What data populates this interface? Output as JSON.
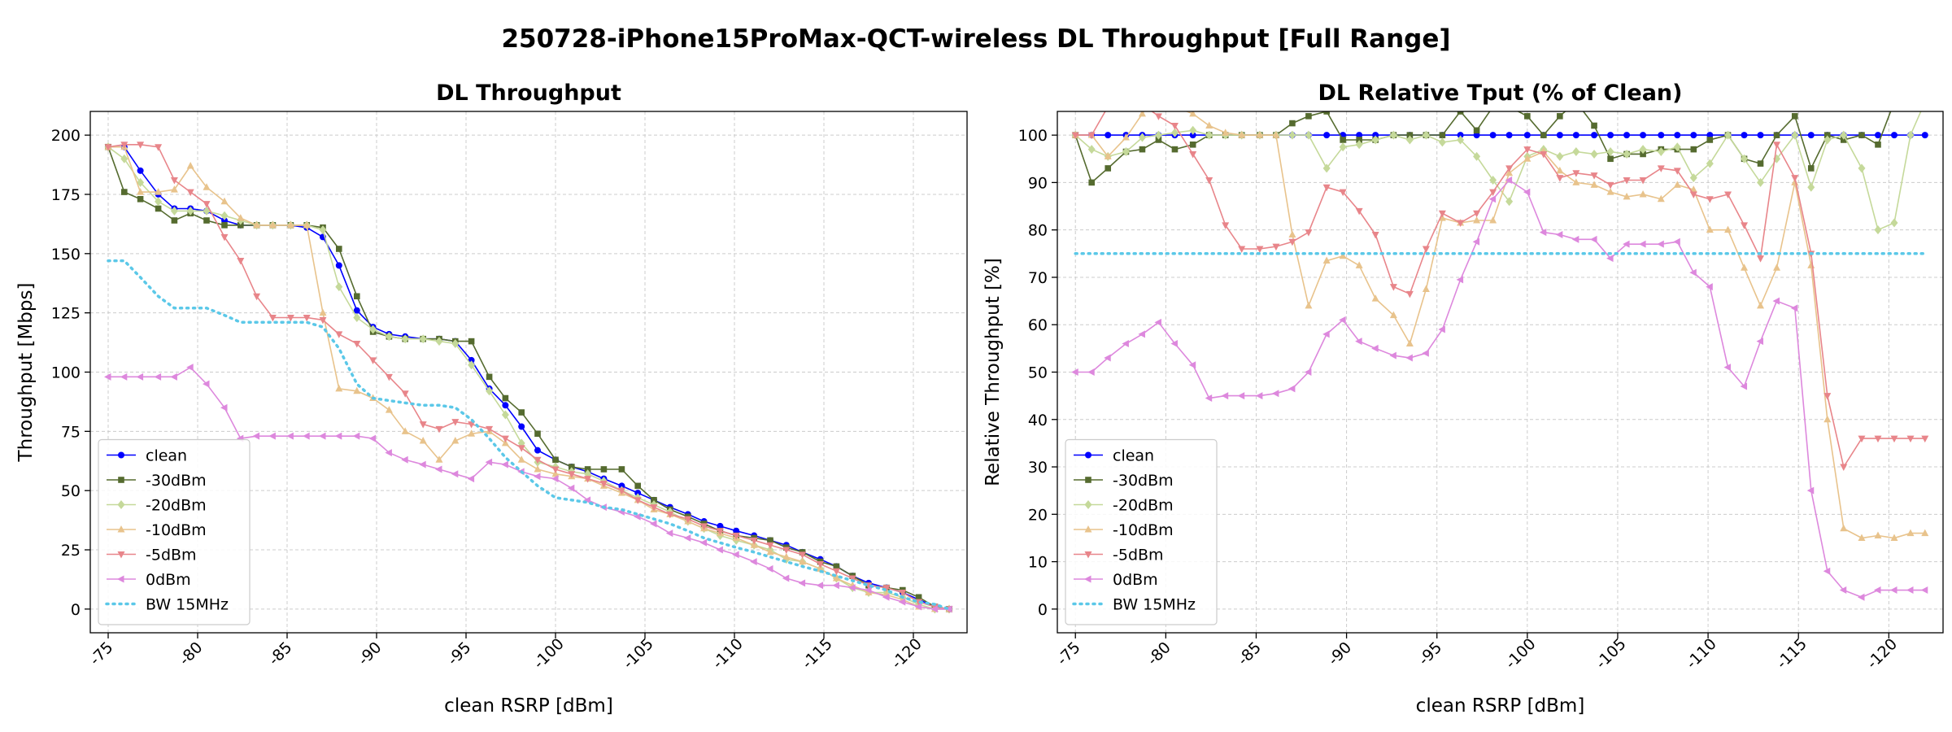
{
  "figure_title": "250728-iPhone15ProMax-QCT-wireless DL Throughput [Full Range]",
  "colors": {
    "clean": "#0000ff",
    "-30dBm": "#556b2f",
    "-20dBm": "#c5d99a",
    "-10dBm": "#e8c38c",
    "-5dBm": "#e8858a",
    "0dBm": "#dd88dd",
    "BW 15MHz": "#5bc8e8"
  },
  "chart_data": [
    {
      "type": "line",
      "title": "DL Throughput",
      "xlabel": "clean RSRP [dBm]",
      "ylabel": "Throughput [Mbps]",
      "xlim": [
        -74,
        -123
      ],
      "ylim": [
        -10,
        210
      ],
      "xticks": [
        -75,
        -80,
        -85,
        -90,
        -95,
        -100,
        -105,
        -110,
        -115,
        -120
      ],
      "xtick_labels": [
        "-75",
        "-80",
        "-85",
        "-90",
        "-95",
        "-100",
        "-105",
        "-110",
        "-115",
        "-120"
      ],
      "yticks": [
        0,
        25,
        50,
        75,
        100,
        125,
        150,
        175,
        200
      ],
      "ytick_labels": [
        "0",
        "25",
        "50",
        "75",
        "100",
        "125",
        "150",
        "175",
        "200"
      ],
      "grid": true,
      "legend_position": "lower-left",
      "x": [
        -75,
        -75.9,
        -76.8,
        -77.8,
        -78.7,
        -79.6,
        -80.5,
        -81.5,
        -82.4,
        -83.3,
        -84.2,
        -85.2,
        -86.1,
        -87,
        -87.9,
        -88.9,
        -89.8,
        -90.7,
        -91.6,
        -92.6,
        -93.5,
        -94.4,
        -95.3,
        -96.3,
        -97.2,
        -98.1,
        -99,
        -100,
        -100.9,
        -101.8,
        -102.7,
        -103.7,
        -104.6,
        -105.5,
        -106.4,
        -107.4,
        -108.3,
        -109.2,
        -110.1,
        -111.1,
        -112,
        -112.9,
        -113.8,
        -114.8,
        -115.7,
        -116.6,
        -117.5,
        -118.5,
        -119.4,
        -120.3,
        -121.2,
        -122
      ],
      "series": [
        {
          "name": "clean",
          "marker": "circle",
          "values": [
            195,
            195,
            185,
            175,
            169,
            169,
            168,
            164,
            162,
            162,
            162,
            162,
            161,
            157,
            145,
            126,
            119,
            116,
            115,
            114,
            114,
            113,
            105,
            93,
            86,
            77,
            67,
            63,
            60,
            58,
            55,
            52,
            49,
            46,
            43,
            40,
            37,
            35,
            33,
            31,
            29,
            27,
            24,
            21,
            18,
            14,
            11,
            9,
            7,
            4,
            1,
            0
          ]
        },
        {
          "name": "-30dBm",
          "marker": "square",
          "values": [
            195,
            176,
            173,
            169,
            164,
            167,
            164,
            162,
            162,
            162,
            162,
            162,
            162,
            161,
            152,
            132,
            117,
            115,
            114,
            114,
            114,
            113,
            113,
            98,
            89,
            83,
            74,
            63,
            60,
            59,
            59,
            59,
            52,
            46,
            42,
            39,
            36,
            33,
            31,
            30,
            29,
            26,
            24,
            20,
            18,
            14,
            10,
            9,
            8,
            5,
            1,
            0
          ]
        },
        {
          "name": "-20dBm",
          "marker": "diamond",
          "values": [
            195,
            190,
            180,
            172,
            168,
            168,
            168,
            166,
            164,
            162,
            162,
            162,
            162,
            160,
            136,
            123,
            118,
            115,
            114,
            114,
            113,
            112,
            103,
            92,
            82,
            70,
            62,
            60,
            58,
            57,
            54,
            50,
            47,
            44,
            41,
            37,
            34,
            31,
            29,
            27,
            25,
            21,
            20,
            17,
            13,
            9,
            7,
            7,
            5,
            2,
            0,
            0
          ]
        },
        {
          "name": "-10dBm",
          "marker": "triangle-up",
          "values": [
            195,
            195,
            176,
            176,
            177,
            187,
            178,
            172,
            165,
            162,
            162,
            162,
            162,
            125,
            93,
            92,
            89,
            84,
            75,
            71,
            63,
            71,
            74,
            75,
            70,
            63,
            59,
            57,
            56,
            55,
            52,
            49,
            46,
            42,
            40,
            37,
            34,
            32,
            30,
            27,
            24,
            22,
            20,
            17,
            13,
            10,
            7,
            6,
            4,
            1,
            0,
            0
          ]
        },
        {
          "name": "-5dBm",
          "marker": "triangle-down",
          "values": [
            195,
            196,
            196,
            195,
            181,
            176,
            171,
            157,
            147,
            132,
            123,
            123,
            123,
            122,
            116,
            112,
            105,
            98,
            91,
            78,
            76,
            79,
            78,
            76,
            72,
            68,
            63,
            59,
            57,
            55,
            53,
            50,
            46,
            43,
            40,
            38,
            35,
            33,
            31,
            29,
            27,
            25,
            23,
            19,
            16,
            13,
            10,
            9,
            7,
            3,
            1,
            0
          ]
        },
        {
          "name": "0dBm",
          "marker": "triangle-left",
          "values": [
            98,
            98,
            98,
            98,
            98,
            102,
            95,
            85,
            72,
            73,
            73,
            73,
            73,
            73,
            73,
            73,
            72,
            66,
            63,
            61,
            59,
            57,
            55,
            62,
            61,
            58,
            56,
            55,
            51,
            46,
            43,
            41,
            39,
            36,
            32,
            30,
            28,
            25,
            23,
            20,
            17,
            13,
            11,
            10,
            10,
            9,
            8,
            5,
            3,
            1,
            0,
            0
          ]
        },
        {
          "name": "BW 15MHz",
          "marker": "none",
          "dashed": true,
          "values": [
            147,
            147,
            140,
            132,
            127,
            127,
            127,
            124,
            121,
            121,
            121,
            121,
            121,
            119,
            110,
            95,
            89,
            88,
            87,
            86,
            86,
            85,
            80,
            72,
            64,
            58,
            52,
            47,
            46,
            45,
            43,
            42,
            40,
            38,
            36,
            33,
            30,
            28,
            26,
            24,
            22,
            20,
            18,
            16,
            14,
            12,
            10,
            8,
            5,
            3,
            2,
            0
          ]
        }
      ]
    },
    {
      "type": "line",
      "title": "DL Relative Tput (% of Clean)",
      "xlabel": "clean RSRP [dBm]",
      "ylabel": "Relative Throughput [%]",
      "xlim": [
        -74,
        -123
      ],
      "ylim": [
        -5,
        105
      ],
      "xticks": [
        -75,
        -80,
        -85,
        -90,
        -95,
        -100,
        -105,
        -110,
        -115,
        -120
      ],
      "xtick_labels": [
        "-75",
        "-80",
        "-85",
        "-90",
        "-95",
        "-100",
        "-105",
        "-110",
        "-115",
        "-120"
      ],
      "yticks": [
        0,
        10,
        20,
        30,
        40,
        50,
        60,
        70,
        80,
        90,
        100
      ],
      "ytick_labels": [
        "0",
        "10",
        "20",
        "30",
        "40",
        "50",
        "60",
        "70",
        "80",
        "90",
        "100"
      ],
      "grid": true,
      "legend_position": "lower-left",
      "x": [
        -75,
        -75.9,
        -76.8,
        -77.8,
        -78.7,
        -79.6,
        -80.5,
        -81.5,
        -82.4,
        -83.3,
        -84.2,
        -85.2,
        -86.1,
        -87,
        -87.9,
        -88.9,
        -89.8,
        -90.7,
        -91.6,
        -92.6,
        -93.5,
        -94.4,
        -95.3,
        -96.3,
        -97.2,
        -98.1,
        -99,
        -100,
        -100.9,
        -101.8,
        -102.7,
        -103.7,
        -104.6,
        -105.5,
        -106.4,
        -107.4,
        -108.3,
        -109.2,
        -110.1,
        -111.1,
        -112,
        -112.9,
        -113.8,
        -114.8,
        -115.7,
        -116.6,
        -117.5,
        -118.5,
        -119.4,
        -120.3,
        -121.2,
        -122
      ],
      "series": [
        {
          "name": "clean",
          "marker": "circle",
          "values": [
            100,
            100,
            100,
            100,
            100,
            100,
            100,
            100,
            100,
            100,
            100,
            100,
            100,
            100,
            100,
            100,
            100,
            100,
            100,
            100,
            100,
            100,
            100,
            100,
            100,
            100,
            100,
            100,
            100,
            100,
            100,
            100,
            100,
            100,
            100,
            100,
            100,
            100,
            100,
            100,
            100,
            100,
            100,
            100,
            100,
            100,
            100,
            100,
            100,
            100,
            100,
            100
          ]
        },
        {
          "name": "-30dBm",
          "marker": "square",
          "values": [
            100,
            90,
            93,
            96.5,
            97,
            99,
            97,
            98,
            100,
            100,
            100,
            100,
            100,
            102.5,
            104,
            105,
            99,
            99,
            99,
            100,
            100,
            100,
            100,
            105,
            101,
            106,
            106,
            104,
            100,
            104,
            107,
            102,
            95,
            96,
            96,
            97,
            97,
            97,
            99,
            100,
            95,
            94,
            100,
            104,
            93,
            100,
            99,
            100,
            98,
            107,
            107,
            107
          ]
        },
        {
          "name": "-20dBm",
          "marker": "diamond",
          "values": [
            100,
            97,
            95.5,
            96.5,
            99.5,
            100,
            100.5,
            101,
            100,
            100,
            100,
            100,
            100,
            100,
            100,
            93,
            97.5,
            98,
            99,
            100,
            99,
            100,
            98.5,
            99,
            95.5,
            90.5,
            86,
            95.5,
            97,
            95.5,
            96.5,
            96,
            96.5,
            96,
            97,
            96.5,
            97.5,
            91,
            94,
            100,
            95,
            90,
            95,
            100,
            89,
            99,
            100,
            93,
            80,
            81.5,
            100,
            107
          ]
        },
        {
          "name": "-10dBm",
          "marker": "triangle-up",
          "values": [
            100,
            100,
            95.5,
            99.5,
            104.5,
            110,
            106,
            104.5,
            102,
            100.5,
            100,
            100,
            100,
            79,
            64,
            73.5,
            74.5,
            72.5,
            65.5,
            62,
            56,
            67.5,
            82.5,
            81.5,
            82,
            82,
            92,
            95,
            96.5,
            92.5,
            90,
            89.5,
            88,
            87,
            87.5,
            86.5,
            89.5,
            88.5,
            80,
            80,
            72,
            64,
            72,
            90,
            72.5,
            40,
            17,
            15,
            15.5,
            15,
            16,
            16
          ]
        },
        {
          "name": "-5dBm",
          "marker": "triangle-down",
          "values": [
            100,
            100,
            106,
            106,
            106.5,
            104,
            102,
            96,
            90.5,
            81,
            76,
            76,
            76.5,
            77.5,
            79.5,
            89,
            88,
            84,
            79,
            68,
            66.5,
            76,
            83.5,
            81.5,
            83.5,
            88,
            93,
            97,
            96,
            91,
            92,
            91.5,
            89.5,
            90.5,
            90.5,
            93,
            92.5,
            87.5,
            86.5,
            87.5,
            81,
            74,
            98,
            91,
            75,
            45,
            30,
            36,
            36,
            36,
            36,
            36
          ]
        },
        {
          "name": "0dBm",
          "marker": "triangle-left",
          "values": [
            50,
            50,
            53,
            56,
            58,
            60.5,
            56,
            51.5,
            44.5,
            45,
            45,
            45,
            45.5,
            46.5,
            50,
            58,
            61,
            56.5,
            55,
            53.5,
            53,
            54,
            59,
            69.5,
            77.5,
            86.5,
            90.5,
            88,
            79.5,
            79,
            78,
            78,
            74,
            77,
            77,
            77,
            77.5,
            71,
            68,
            51,
            47,
            56.5,
            65,
            63.5,
            25,
            8,
            4,
            2.5,
            4,
            4,
            4,
            4
          ]
        },
        {
          "name": "BW 15MHz",
          "marker": "none",
          "dashed": true,
          "values": [
            75,
            75,
            75,
            75,
            75,
            75,
            75,
            75,
            75,
            75,
            75,
            75,
            75,
            75,
            75,
            75,
            75,
            75,
            75,
            75,
            75,
            75,
            75,
            75,
            75,
            75,
            75,
            75,
            75,
            75,
            75,
            75,
            75,
            75,
            75,
            75,
            75,
            75,
            75,
            75,
            75,
            75,
            75,
            75,
            75,
            75,
            75,
            75,
            75,
            75,
            75,
            75
          ]
        }
      ]
    }
  ]
}
